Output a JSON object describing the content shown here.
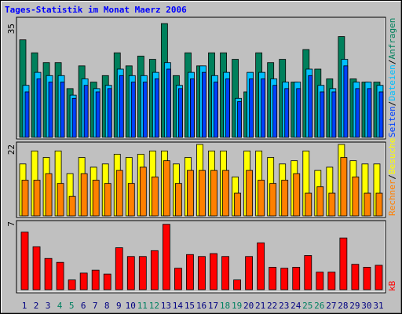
{
  "title": "Tages-Statistik im Monat Maerz 2006",
  "legend_separator": "/",
  "chart_data": [
    {
      "type": "bar",
      "ylim": [
        0,
        35
      ],
      "yticks": [
        35
      ],
      "series": [
        {
          "name": "Anfragen",
          "color": "#00805c",
          "values": [
            30,
            26,
            23,
            23,
            15,
            22,
            17,
            19,
            26,
            22,
            25,
            24,
            35,
            19,
            26,
            22,
            26,
            26,
            24,
            14,
            26,
            23,
            24,
            17,
            27,
            21,
            18,
            31,
            18,
            17,
            17
          ]
        },
        {
          "name": "Dateien",
          "color": "#00c0ff",
          "values": [
            16,
            20,
            19,
            19,
            13,
            18,
            15,
            16,
            21,
            19,
            19,
            20,
            23,
            16,
            20,
            22,
            19,
            20,
            12,
            20,
            20,
            18,
            17,
            17,
            21,
            16,
            15,
            24,
            17,
            17,
            16
          ]
        },
        {
          "name": "Seiten",
          "color": "#0040ff",
          "values": [
            14,
            18,
            17,
            17,
            12,
            16,
            14,
            15,
            19,
            17,
            17,
            18,
            21,
            15,
            18,
            20,
            17,
            18,
            11,
            18,
            18,
            16,
            15,
            15,
            19,
            14,
            14,
            22,
            15,
            15,
            14
          ]
        }
      ]
    },
    {
      "type": "bar",
      "ylim": [
        0,
        22
      ],
      "yticks": [
        22
      ],
      "series": [
        {
          "name": "Besuche",
          "color": "#ffff00",
          "values": [
            16,
            20,
            18,
            20,
            13,
            18,
            15,
            16,
            19,
            18,
            19,
            20,
            20,
            16,
            18,
            22,
            20,
            20,
            12,
            20,
            20,
            18,
            16,
            17,
            20,
            14,
            15,
            22,
            17,
            16,
            16
          ]
        },
        {
          "name": "Rechner",
          "color": "#ff8000",
          "values": [
            11,
            11,
            13,
            10,
            6,
            13,
            11,
            10,
            14,
            10,
            15,
            12,
            17,
            10,
            14,
            14,
            14,
            14,
            7,
            14,
            11,
            10,
            11,
            13,
            7,
            9,
            7,
            18,
            12,
            7,
            7
          ]
        }
      ]
    },
    {
      "type": "bar",
      "ylim": [
        0,
        7
      ],
      "yticks": [
        7
      ],
      "categories": [
        "1",
        "2",
        "3",
        "4",
        "5",
        "6",
        "7",
        "8",
        "9",
        "10",
        "11",
        "12",
        "13",
        "14",
        "15",
        "16",
        "17",
        "18",
        "19",
        "20",
        "21",
        "22",
        "23",
        "24",
        "25",
        "26",
        "27",
        "28",
        "29",
        "30",
        "31"
      ],
      "weekend_indices": [
        3,
        4,
        10,
        11,
        17,
        18,
        24,
        25
      ],
      "weekend_color": "#008060",
      "label_color": "#000080",
      "series": [
        {
          "name": "kB",
          "color": "#ff0000",
          "values": [
            5.9,
            4.4,
            3.2,
            2.8,
            1.0,
            1.7,
            2.0,
            1.6,
            4.3,
            3.4,
            3.4,
            4.0,
            6.7,
            2.2,
            3.6,
            3.4,
            3.7,
            3.4,
            1.0,
            3.4,
            4.8,
            2.3,
            2.2,
            2.3,
            3.5,
            1.8,
            1.8,
            5.3,
            2.6,
            2.3,
            2.5
          ]
        }
      ]
    }
  ]
}
